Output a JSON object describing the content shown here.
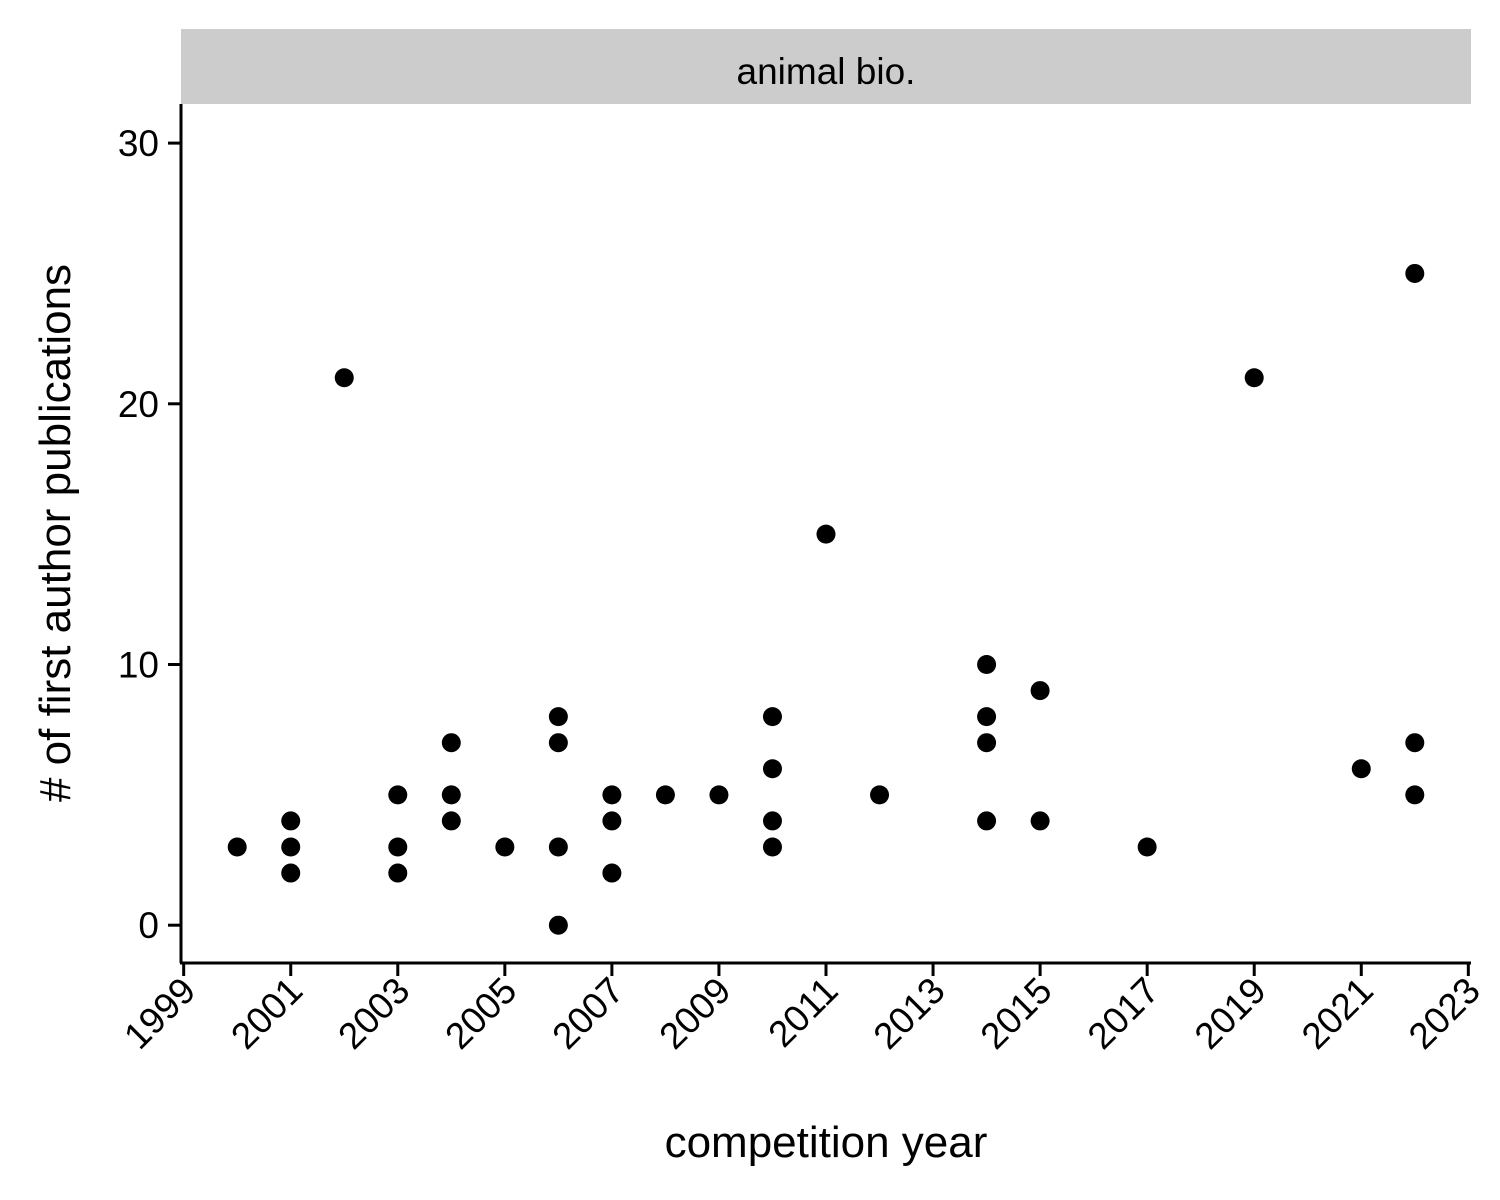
{
  "chart_data": {
    "type": "scatter",
    "facet_label": "animal bio.",
    "xlabel": "competition year",
    "ylabel": "# of first author publications",
    "x_ticks": [
      1999,
      2001,
      2003,
      2005,
      2007,
      2009,
      2011,
      2013,
      2015,
      2017,
      2019,
      2021,
      2023
    ],
    "y_ticks": [
      0,
      10,
      20,
      30
    ],
    "xlim": [
      1998.95,
      2023.05
    ],
    "ylim": [
      -1.45,
      31.5
    ],
    "grid": false,
    "legend": "none",
    "point_color": "#000000",
    "strip_color": "#cccccc",
    "points": [
      {
        "x": 2000,
        "y": 3
      },
      {
        "x": 2001,
        "y": 2
      },
      {
        "x": 2001,
        "y": 3
      },
      {
        "x": 2001,
        "y": 4
      },
      {
        "x": 2002,
        "y": 21
      },
      {
        "x": 2003,
        "y": 2
      },
      {
        "x": 2003,
        "y": 3
      },
      {
        "x": 2003,
        "y": 5
      },
      {
        "x": 2004,
        "y": 4
      },
      {
        "x": 2004,
        "y": 5
      },
      {
        "x": 2004,
        "y": 7
      },
      {
        "x": 2005,
        "y": 3
      },
      {
        "x": 2006,
        "y": 0
      },
      {
        "x": 2006,
        "y": 3
      },
      {
        "x": 2006,
        "y": 7
      },
      {
        "x": 2006,
        "y": 8
      },
      {
        "x": 2007,
        "y": 2
      },
      {
        "x": 2007,
        "y": 4
      },
      {
        "x": 2007,
        "y": 5
      },
      {
        "x": 2008,
        "y": 5
      },
      {
        "x": 2009,
        "y": 5
      },
      {
        "x": 2010,
        "y": 3
      },
      {
        "x": 2010,
        "y": 4
      },
      {
        "x": 2010,
        "y": 6
      },
      {
        "x": 2010,
        "y": 8
      },
      {
        "x": 2011,
        "y": 15
      },
      {
        "x": 2012,
        "y": 5
      },
      {
        "x": 2014,
        "y": 4
      },
      {
        "x": 2014,
        "y": 7
      },
      {
        "x": 2014,
        "y": 8
      },
      {
        "x": 2014,
        "y": 10
      },
      {
        "x": 2015,
        "y": 4
      },
      {
        "x": 2015,
        "y": 9
      },
      {
        "x": 2017,
        "y": 3
      },
      {
        "x": 2019,
        "y": 21
      },
      {
        "x": 2021,
        "y": 6
      },
      {
        "x": 2022,
        "y": 5
      },
      {
        "x": 2022,
        "y": 7
      },
      {
        "x": 2022,
        "y": 25
      }
    ]
  }
}
